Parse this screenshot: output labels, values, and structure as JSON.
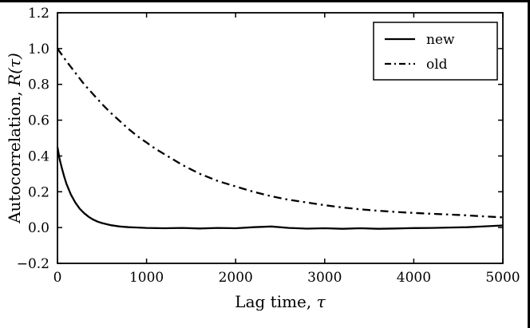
{
  "figure": {
    "background": "#ffffff",
    "border_color": "#000000"
  },
  "chart_data": {
    "type": "line",
    "title": "",
    "xlabel": {
      "plain": "Lag time, ",
      "math": "τ"
    },
    "ylabel": {
      "plain": "Autocorrelation, ",
      "math": "R(τ)"
    },
    "xlim": [
      0,
      5000
    ],
    "ylim": [
      -0.2,
      1.2
    ],
    "xticks": [
      0,
      1000,
      2000,
      3000,
      4000,
      5000
    ],
    "yticks": [
      -0.2,
      0.0,
      0.2,
      0.4,
      0.6,
      0.8,
      1.0,
      1.2
    ],
    "grid": false,
    "tick_direction": "in",
    "axes_color": "#000000",
    "legend": {
      "position": "upper right",
      "border_color": "#000000"
    },
    "series": [
      {
        "name": "new",
        "style": "solid",
        "color": "#000000",
        "points": [
          [
            0,
            0.45
          ],
          [
            25,
            0.38
          ],
          [
            50,
            0.33
          ],
          [
            75,
            0.285
          ],
          [
            100,
            0.245
          ],
          [
            150,
            0.185
          ],
          [
            200,
            0.14
          ],
          [
            250,
            0.105
          ],
          [
            300,
            0.08
          ],
          [
            350,
            0.06
          ],
          [
            400,
            0.045
          ],
          [
            450,
            0.033
          ],
          [
            500,
            0.025
          ],
          [
            600,
            0.013
          ],
          [
            700,
            0.006
          ],
          [
            800,
            0.002
          ],
          [
            900,
            0.0
          ],
          [
            1000,
            -0.002
          ],
          [
            1200,
            -0.004
          ],
          [
            1400,
            -0.002
          ],
          [
            1600,
            -0.005
          ],
          [
            1800,
            -0.002
          ],
          [
            2000,
            -0.004
          ],
          [
            2200,
            0.002
          ],
          [
            2400,
            0.006
          ],
          [
            2600,
            -0.002
          ],
          [
            2800,
            -0.006
          ],
          [
            3000,
            -0.004
          ],
          [
            3200,
            -0.007
          ],
          [
            3400,
            -0.004
          ],
          [
            3600,
            -0.007
          ],
          [
            3800,
            -0.005
          ],
          [
            4000,
            -0.003
          ],
          [
            4200,
            -0.002
          ],
          [
            4400,
            0.0
          ],
          [
            4600,
            0.002
          ],
          [
            4800,
            0.007
          ],
          [
            5000,
            0.012
          ]
        ]
      },
      {
        "name": "old",
        "style": "dashdot",
        "color": "#000000",
        "points": [
          [
            0,
            1.0
          ],
          [
            100,
            0.93
          ],
          [
            200,
            0.865
          ],
          [
            300,
            0.8
          ],
          [
            400,
            0.745
          ],
          [
            500,
            0.69
          ],
          [
            600,
            0.64
          ],
          [
            700,
            0.595
          ],
          [
            800,
            0.55
          ],
          [
            900,
            0.51
          ],
          [
            1000,
            0.475
          ],
          [
            1100,
            0.44
          ],
          [
            1200,
            0.41
          ],
          [
            1300,
            0.38
          ],
          [
            1400,
            0.35
          ],
          [
            1500,
            0.325
          ],
          [
            1600,
            0.3
          ],
          [
            1700,
            0.28
          ],
          [
            1800,
            0.26
          ],
          [
            1900,
            0.245
          ],
          [
            2000,
            0.23
          ],
          [
            2200,
            0.2
          ],
          [
            2400,
            0.175
          ],
          [
            2600,
            0.155
          ],
          [
            2800,
            0.14
          ],
          [
            3000,
            0.125
          ],
          [
            3200,
            0.112
          ],
          [
            3400,
            0.102
          ],
          [
            3600,
            0.094
          ],
          [
            3800,
            0.087
          ],
          [
            4000,
            0.082
          ],
          [
            4200,
            0.077
          ],
          [
            4400,
            0.073
          ],
          [
            4600,
            0.068
          ],
          [
            4800,
            0.062
          ],
          [
            5000,
            0.057
          ]
        ]
      }
    ]
  }
}
